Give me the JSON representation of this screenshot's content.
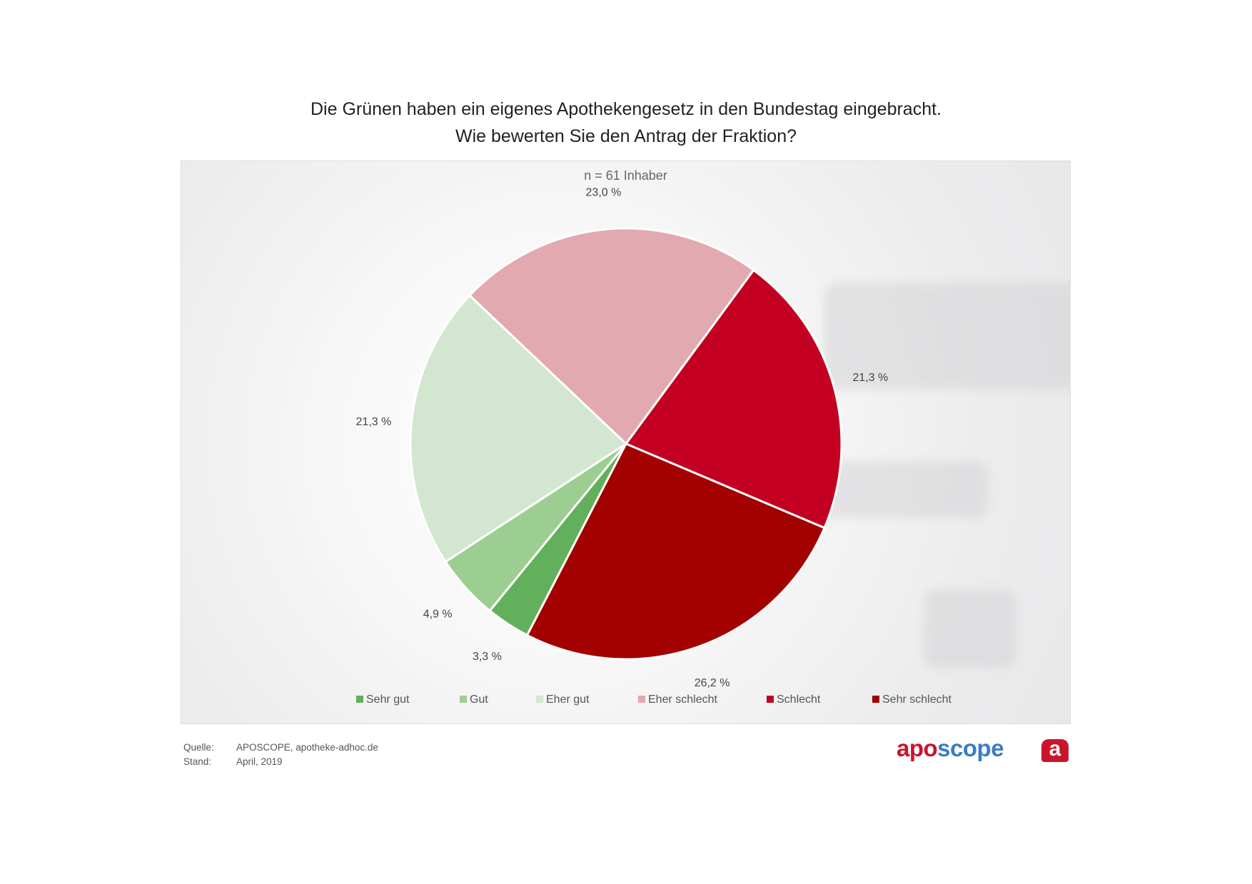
{
  "title_lines": [
    "Die Grünen haben ein eigenes Apothekengesetz in den Bundestag eingebracht.",
    "Wie bewerten Sie den Antrag der Fraktion?"
  ],
  "sample_label": "n = 61 Inhaber",
  "chart_data": {
    "type": "pie",
    "title": "Die Grünen haben ein eigenes Apothekengesetz in den Bundestag eingebracht. Wie bewerten Sie den Antrag der Fraktion?",
    "subtitle": "n = 61 Inhaber",
    "legend_position": "bottom",
    "unit": "%",
    "slices": [
      {
        "name": "Sehr gut",
        "value": 3.3,
        "label": "3,3 %",
        "color": "#62b05b"
      },
      {
        "name": "Gut",
        "value": 4.9,
        "label": "4,9 %",
        "color": "#9ccd91"
      },
      {
        "name": "Eher gut",
        "value": 21.3,
        "label": "21,3 %",
        "color": "#d2e6d0"
      },
      {
        "name": "Eher schlecht",
        "value": 23.0,
        "label": "23,0 %",
        "color": "#e2a9b0"
      },
      {
        "name": "Schlecht",
        "value": 21.3,
        "label": "21,3 %",
        "color": "#c30021"
      },
      {
        "name": "Sehr schlecht",
        "value": 26.2,
        "label": "26,2 %",
        "color": "#a30000"
      }
    ]
  },
  "footer": {
    "source_key": "Quelle:",
    "source_value": "APOSCOPE, apotheke-adhoc.de",
    "date_key": "Stand:",
    "date_value": "April, 2019"
  },
  "brand": {
    "part1": "apo",
    "part2": "scope",
    "badge": "a"
  }
}
